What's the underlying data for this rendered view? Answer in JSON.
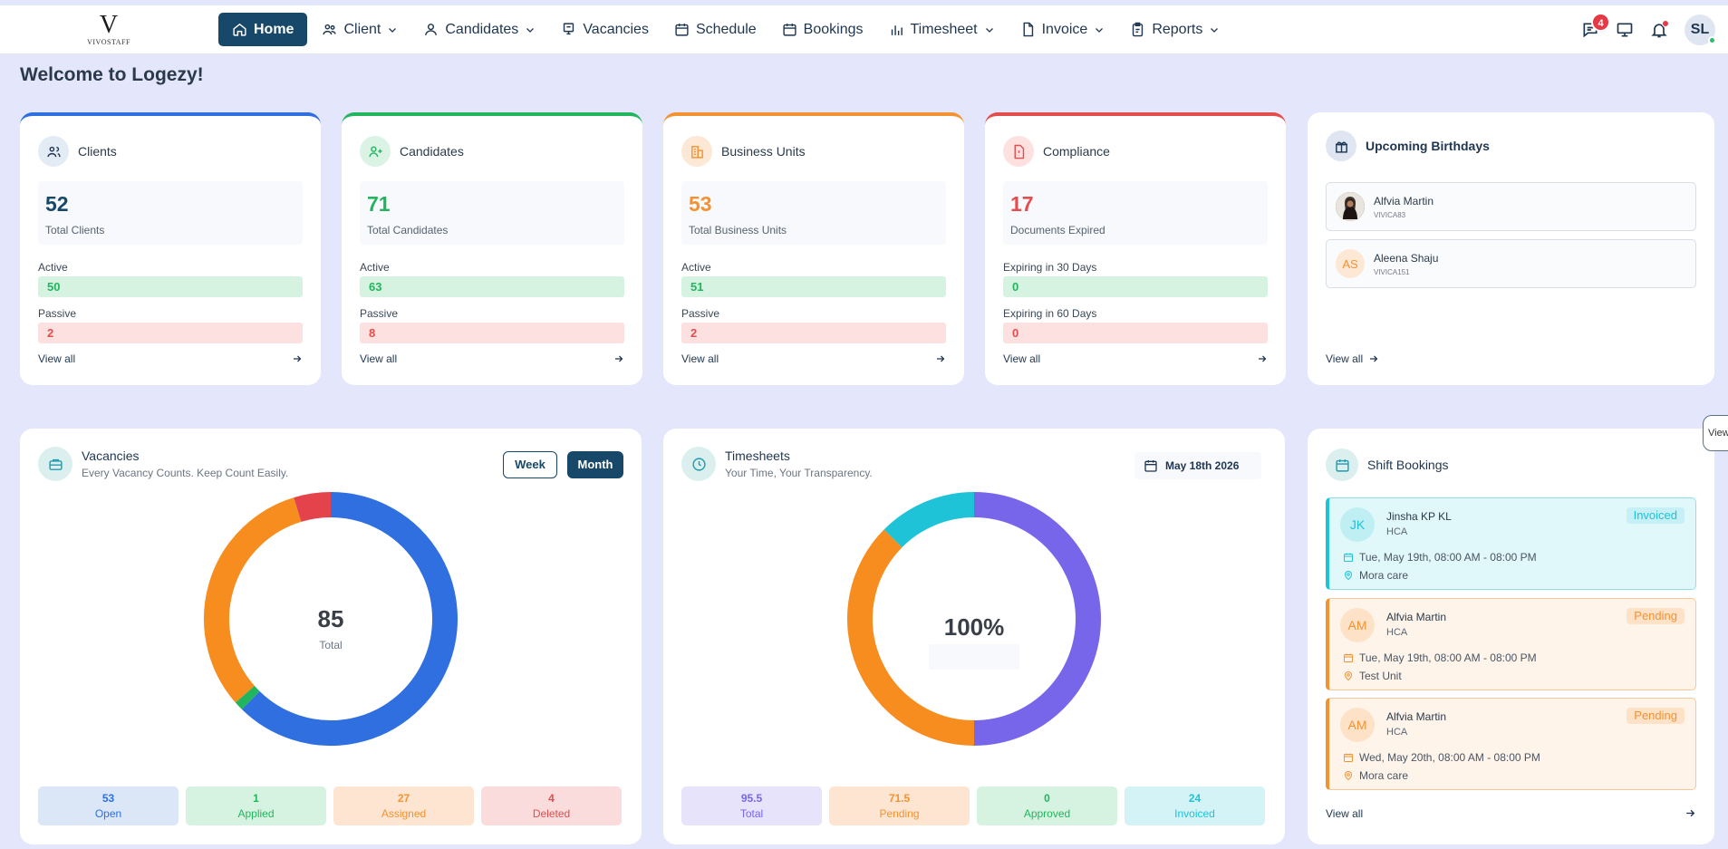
{
  "brand": {
    "mark": "V",
    "word": "VIVOSTAFF"
  },
  "nav": {
    "home": "Home",
    "client": "Client",
    "candidates": "Candidates",
    "vacancies": "Vacancies",
    "schedule": "Schedule",
    "bookings": "Bookings",
    "timesheet": "Timesheet",
    "invoice": "Invoice",
    "reports": "Reports"
  },
  "header": {
    "messages_badge": "4",
    "avatar_initials": "SL"
  },
  "page": {
    "title": "Welcome to Logezy!"
  },
  "colors": {
    "navy": "#184869",
    "blue": "#2f6fe0",
    "green": "#22b55d",
    "orange": "#f39232",
    "red": "#e24d4d",
    "cyan": "#1ec3d8",
    "purple": "#7766ea"
  },
  "stats": {
    "clients": {
      "title": "Clients",
      "total": "52",
      "total_label": "Total Clients",
      "row1_label": "Active",
      "row1_value": "50",
      "row2_label": "Passive",
      "row2_value": "2",
      "view_all": "View all"
    },
    "candidates": {
      "title": "Candidates",
      "total": "71",
      "total_label": "Total Candidates",
      "row1_label": "Active",
      "row1_value": "63",
      "row2_label": "Passive",
      "row2_value": "8",
      "view_all": "View all"
    },
    "units": {
      "title": "Business Units",
      "total": "53",
      "total_label": "Total Business Units",
      "row1_label": "Active",
      "row1_value": "51",
      "row2_label": "Passive",
      "row2_value": "2",
      "view_all": "View all"
    },
    "compliance": {
      "title": "Compliance",
      "total": "17",
      "total_label": "Documents Expired",
      "row1_label": "Expiring in 30 Days",
      "row1_value": "0",
      "row2_label": "Expiring in 60 Days",
      "row2_value": "0",
      "view_all": "View all"
    }
  },
  "birthdays": {
    "title": "Upcoming Birthdays",
    "items": [
      {
        "name": "Alfvia Martin",
        "code": "VIVICA83",
        "initials": ""
      },
      {
        "name": "Aleena Shaju",
        "code": "VIVICA151",
        "initials": "AS"
      }
    ],
    "view_all": "View all"
  },
  "vacancies": {
    "title": "Vacancies",
    "subtitle": "Every Vacancy Counts. Keep Count Easily.",
    "toggle_week": "Week",
    "toggle_month": "Month",
    "selected_period": "Month",
    "center_value": "85",
    "center_label": "Total",
    "segments": [
      {
        "label": "Open",
        "value": 53,
        "color": "#2f6fe0"
      },
      {
        "label": "Applied",
        "value": 1,
        "color": "#22b55d"
      },
      {
        "label": "Assigned",
        "value": 27,
        "color": "#f68d1e"
      },
      {
        "label": "Deleted",
        "value": 4,
        "color": "#e5434b"
      }
    ],
    "pills": [
      {
        "value": "53",
        "label": "Open"
      },
      {
        "value": "1",
        "label": "Applied"
      },
      {
        "value": "27",
        "label": "Assigned"
      },
      {
        "value": "4",
        "label": "Deleted"
      }
    ]
  },
  "timesheets": {
    "title": "Timesheets",
    "subtitle": "Your Time, Your Transparency.",
    "date": "May 18th 2026",
    "center_value": "100%",
    "segments": [
      {
        "label": "Total",
        "value": 95.5,
        "color": "#7766ea"
      },
      {
        "label": "Pending",
        "value": 71.5,
        "color": "#f68d1e"
      },
      {
        "label": "Approved",
        "value": 0,
        "color": "#22b55d"
      },
      {
        "label": "Invoiced",
        "value": 24,
        "color": "#1ec3d8"
      }
    ],
    "pills": [
      {
        "value": "95.5",
        "label": "Total"
      },
      {
        "value": "71.5",
        "label": "Pending"
      },
      {
        "value": "0",
        "label": "Approved"
      },
      {
        "value": "24",
        "label": "Invoiced"
      }
    ]
  },
  "shifts": {
    "title": "Shift Bookings",
    "items": [
      {
        "initials": "JK",
        "name": "Jinsha KP KL",
        "role": "HCA",
        "status": "Invoiced",
        "datetime": "Tue, May 19th, 08:00 AM - 08:00 PM",
        "location": "Mora care"
      },
      {
        "initials": "AM",
        "name": "Alfvia Martin",
        "role": "HCA",
        "status": "Pending",
        "datetime": "Tue, May 19th, 08:00 AM - 08:00 PM",
        "location": "Test Unit"
      },
      {
        "initials": "AM",
        "name": "Alfvia Martin",
        "role": "HCA",
        "status": "Pending",
        "datetime": "Wed, May 20th, 08:00 AM - 08:00 PM",
        "location": "Mora care"
      }
    ],
    "view_all": "View all"
  },
  "edge_tab": "View"
}
